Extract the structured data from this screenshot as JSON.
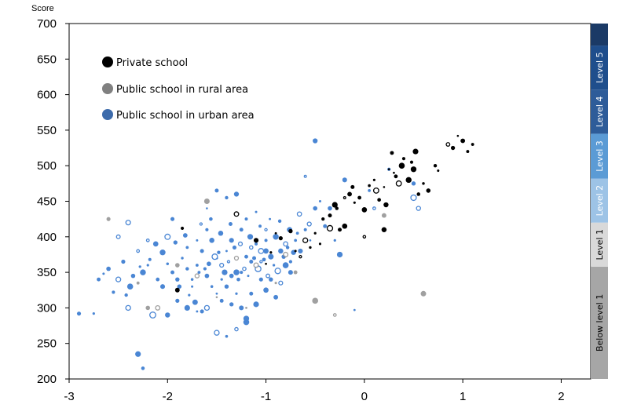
{
  "chart_data": {
    "type": "scatter",
    "title": "",
    "xlabel": "",
    "ylabel": "Score",
    "xlim": [
      -3,
      2.3
    ],
    "ylim": [
      200,
      700
    ],
    "x_ticks": [
      "-3",
      "-2",
      "-1",
      "0",
      "1",
      "2"
    ],
    "y_ticks": [
      "700",
      "650",
      "600",
      "550",
      "500",
      "450",
      "400",
      "350",
      "300",
      "250",
      "200"
    ],
    "grid": false,
    "legend_position": "top-left",
    "series": [
      {
        "name": "Private school",
        "color": "#000000",
        "points": [
          [
            -1.85,
            412
          ],
          [
            -1.3,
            432
          ],
          [
            -1.1,
            395
          ],
          [
            -1.0,
            362
          ],
          [
            -0.95,
            378
          ],
          [
            -0.9,
            405
          ],
          [
            -0.85,
            398
          ],
          [
            -0.75,
            408
          ],
          [
            -0.7,
            380
          ],
          [
            -0.65,
            372
          ],
          [
            -0.55,
            385
          ],
          [
            -0.5,
            405
          ],
          [
            -0.45,
            390
          ],
          [
            -0.42,
            425
          ],
          [
            -0.35,
            430
          ],
          [
            -0.3,
            445
          ],
          [
            -0.28,
            440
          ],
          [
            -0.25,
            410
          ],
          [
            -0.2,
            415
          ],
          [
            -0.15,
            460
          ],
          [
            -0.12,
            470
          ],
          [
            -0.1,
            448
          ],
          [
            -0.05,
            455
          ],
          [
            0.0,
            438
          ],
          [
            0.05,
            472
          ],
          [
            0.1,
            480
          ],
          [
            0.12,
            465
          ],
          [
            0.15,
            452
          ],
          [
            0.2,
            470
          ],
          [
            0.22,
            445
          ],
          [
            0.25,
            495
          ],
          [
            0.28,
            518
          ],
          [
            0.3,
            490
          ],
          [
            0.32,
            485
          ],
          [
            0.35,
            475
          ],
          [
            0.38,
            500
          ],
          [
            0.45,
            480
          ],
          [
            0.48,
            505
          ],
          [
            0.5,
            495
          ],
          [
            0.52,
            520
          ],
          [
            0.55,
            460
          ],
          [
            0.6,
            475
          ],
          [
            0.65,
            465
          ],
          [
            0.72,
            500
          ],
          [
            0.75,
            493
          ],
          [
            0.85,
            530
          ],
          [
            0.9,
            525
          ],
          [
            0.95,
            542
          ],
          [
            1.0,
            535
          ],
          [
            1.05,
            520
          ],
          [
            1.1,
            530
          ],
          [
            -1.9,
            325
          ],
          [
            -0.35,
            412
          ],
          [
            0.0,
            400
          ],
          [
            0.2,
            410
          ],
          [
            -0.6,
            395
          ],
          [
            -0.2,
            455
          ],
          [
            0.4,
            510
          ]
        ]
      },
      {
        "name": "Public school in rural area",
        "color": "#888888",
        "points": [
          [
            -2.6,
            425
          ],
          [
            -2.3,
            335
          ],
          [
            -2.1,
            300
          ],
          [
            -1.9,
            360
          ],
          [
            -1.7,
            345
          ],
          [
            -1.5,
            315
          ],
          [
            -1.3,
            370
          ],
          [
            -1.1,
            360
          ],
          [
            -0.9,
            335
          ],
          [
            -0.7,
            350
          ],
          [
            -0.5,
            310
          ],
          [
            -0.3,
            290
          ],
          [
            0.6,
            320
          ],
          [
            -1.6,
            450
          ],
          [
            -2.2,
            300
          ],
          [
            -1.2,
            300
          ],
          [
            -0.8,
            375
          ],
          [
            0.2,
            430
          ]
        ]
      },
      {
        "name": "Public school in urban area",
        "color": "#4a86d4",
        "points": [
          [
            -2.9,
            292
          ],
          [
            -2.75,
            292
          ],
          [
            -2.7,
            340
          ],
          [
            -2.65,
            348
          ],
          [
            -2.6,
            355
          ],
          [
            -2.55,
            322
          ],
          [
            -2.5,
            340
          ],
          [
            -2.45,
            365
          ],
          [
            -2.4,
            300
          ],
          [
            -2.35,
            345
          ],
          [
            -2.3,
            380
          ],
          [
            -2.25,
            350
          ],
          [
            -2.2,
            360
          ],
          [
            -2.15,
            290
          ],
          [
            -2.1,
            340
          ],
          [
            -2.05,
            330
          ],
          [
            -2.0,
            362
          ],
          [
            -1.95,
            350
          ],
          [
            -1.9,
            340
          ],
          [
            -1.85,
            370
          ],
          [
            -1.8,
            355
          ],
          [
            -1.75,
            330
          ],
          [
            -1.7,
            360
          ],
          [
            -1.65,
            380
          ],
          [
            -1.6,
            345
          ],
          [
            -1.55,
            395
          ],
          [
            -1.5,
            370
          ],
          [
            -1.45,
            360
          ],
          [
            -1.4,
            380
          ],
          [
            -1.35,
            395
          ],
          [
            -1.3,
            350
          ],
          [
            -1.25,
            410
          ],
          [
            -1.2,
            372
          ],
          [
            -1.15,
            365
          ],
          [
            -1.1,
            390
          ],
          [
            -1.05,
            380
          ],
          [
            -1.0,
            395
          ],
          [
            -0.95,
            372
          ],
          [
            -0.9,
            400
          ],
          [
            -0.85,
            380
          ],
          [
            -0.8,
            390
          ],
          [
            -0.75,
            365
          ],
          [
            -0.7,
            395
          ],
          [
            -0.65,
            380
          ],
          [
            -0.6,
            410
          ],
          [
            -0.55,
            395
          ],
          [
            -0.5,
            440
          ],
          [
            -0.45,
            450
          ],
          [
            -0.4,
            415
          ],
          [
            -0.35,
            440
          ],
          [
            -0.3,
            395
          ],
          [
            -0.25,
            375
          ],
          [
            -0.6,
            485
          ],
          [
            -0.5,
            535
          ],
          [
            -0.2,
            480
          ],
          [
            0.05,
            465
          ],
          [
            0.1,
            440
          ],
          [
            0.25,
            495
          ],
          [
            0.5,
            475
          ],
          [
            0.5,
            455
          ],
          [
            0.55,
            440
          ],
          [
            -1.6,
            410
          ],
          [
            -1.7,
            395
          ],
          [
            -1.8,
            385
          ],
          [
            -2.0,
            400
          ],
          [
            -2.2,
            395
          ],
          [
            -2.4,
            420
          ],
          [
            -2.5,
            400
          ],
          [
            -1.95,
            425
          ],
          [
            -1.6,
            440
          ],
          [
            -1.5,
            465
          ],
          [
            -1.4,
            455
          ],
          [
            -1.3,
            460
          ],
          [
            -1.2,
            425
          ],
          [
            -1.1,
            435
          ],
          [
            -1.0,
            410
          ],
          [
            -1.55,
            330
          ],
          [
            -1.5,
            320
          ],
          [
            -1.45,
            310
          ],
          [
            -1.4,
            330
          ],
          [
            -1.35,
            305
          ],
          [
            -1.3,
            320
          ],
          [
            -1.25,
            300
          ],
          [
            -1.2,
            285
          ],
          [
            -1.15,
            320
          ],
          [
            -1.1,
            305
          ],
          [
            -1.05,
            340
          ],
          [
            -1.0,
            325
          ],
          [
            -0.95,
            340
          ],
          [
            -0.9,
            315
          ],
          [
            -0.85,
            335
          ],
          [
            -0.8,
            360
          ],
          [
            -0.75,
            350
          ],
          [
            -2.0,
            290
          ],
          [
            -1.9,
            310
          ],
          [
            -1.8,
            300
          ],
          [
            -1.7,
            295
          ],
          [
            -1.65,
            295
          ],
          [
            -1.6,
            300
          ],
          [
            -1.5,
            265
          ],
          [
            -1.4,
            260
          ],
          [
            -1.3,
            270
          ],
          [
            -1.2,
            280
          ],
          [
            -0.1,
            297
          ],
          [
            -1.75,
            340
          ],
          [
            -1.68,
            350
          ],
          [
            -1.62,
            355
          ],
          [
            -1.58,
            362
          ],
          [
            -1.52,
            372
          ],
          [
            -1.48,
            378
          ],
          [
            -1.42,
            350
          ],
          [
            -1.38,
            365
          ],
          [
            -1.32,
            385
          ],
          [
            -1.28,
            340
          ],
          [
            -1.22,
            355
          ],
          [
            -1.18,
            345
          ],
          [
            -1.12,
            370
          ],
          [
            -1.08,
            355
          ],
          [
            -1.02,
            368
          ],
          [
            -0.98,
            345
          ],
          [
            -0.92,
            360
          ],
          [
            -0.88,
            352
          ],
          [
            -0.82,
            372
          ],
          [
            -0.78,
            385
          ],
          [
            -0.72,
            378
          ],
          [
            -0.68,
            405
          ],
          [
            -2.3,
            235
          ],
          [
            -2.25,
            215
          ],
          [
            -1.0,
            380
          ],
          [
            -1.05,
            365
          ],
          [
            -1.45,
            340
          ],
          [
            -1.35,
            345
          ],
          [
            -1.25,
            350
          ],
          [
            -1.15,
            385
          ],
          [
            -2.05,
            378
          ],
          [
            -2.12,
            390
          ],
          [
            -2.18,
            368
          ],
          [
            -2.28,
            358
          ],
          [
            -2.38,
            330
          ],
          [
            -2.42,
            318
          ],
          [
            -1.88,
            330
          ],
          [
            -1.78,
            318
          ],
          [
            -1.72,
            308
          ],
          [
            -1.92,
            392
          ],
          [
            -1.82,
            402
          ],
          [
            -1.66,
            418
          ],
          [
            -1.56,
            425
          ],
          [
            -1.46,
            405
          ],
          [
            -1.36,
            418
          ],
          [
            -1.26,
            390
          ],
          [
            -1.16,
            400
          ],
          [
            -1.06,
            415
          ],
          [
            -0.96,
            425
          ],
          [
            -0.86,
            422
          ],
          [
            -0.76,
            410
          ],
          [
            -0.66,
            432
          ],
          [
            -0.56,
            418
          ]
        ]
      }
    ],
    "proficiency_bands": [
      {
        "label": "Below level 1",
        "from": 200,
        "to": 358,
        "color": "#a6a6a6",
        "text_color": "#000000"
      },
      {
        "label": "Level 1",
        "from": 358,
        "to": 420,
        "color": "#d9d9d9",
        "text_color": "#000000"
      },
      {
        "label": "Level 2",
        "from": 420,
        "to": 482,
        "color": "#9dc3e6",
        "text_color": "#ffffff"
      },
      {
        "label": "Level 3",
        "from": 482,
        "to": 545,
        "color": "#5b9bd5",
        "text_color": "#ffffff"
      },
      {
        "label": "Level 4",
        "from": 545,
        "to": 607,
        "color": "#2e5c99",
        "text_color": "#ffffff"
      },
      {
        "label": "Level 5",
        "from": 607,
        "to": 669,
        "color": "#1f4e8c",
        "text_color": "#ffffff"
      },
      {
        "label": "",
        "from": 669,
        "to": 700,
        "color": "#1b3a66",
        "text_color": "#ffffff"
      }
    ]
  }
}
